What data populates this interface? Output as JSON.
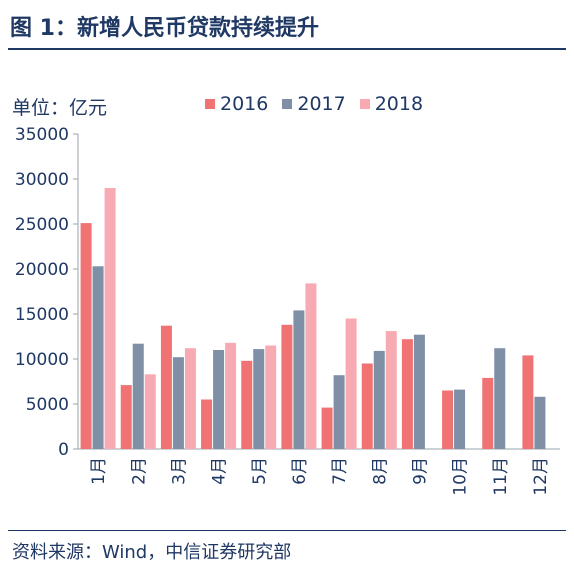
{
  "figure": {
    "title": "图 1：新增人民币贷款持续提升",
    "source": "资料来源：Wind，中信证券研究部"
  },
  "colors": {
    "2016": "#f07273",
    "2017": "#7e8fa6",
    "2018": "#f7aab2",
    "text": "#1f3864",
    "axis": "#9aa3ad"
  },
  "chart_data": {
    "type": "bar",
    "unit_label": "单位：亿元",
    "categories": [
      "1月",
      "2月",
      "3月",
      "4月",
      "5月",
      "6月",
      "7月",
      "8月",
      "9月",
      "10月",
      "11月",
      "12月"
    ],
    "series": [
      {
        "name": "2016",
        "values": [
          25100,
          7100,
          13700,
          5500,
          9800,
          13800,
          4600,
          9500,
          12200,
          6500,
          7900,
          10400
        ]
      },
      {
        "name": "2017",
        "values": [
          20300,
          11700,
          10200,
          11000,
          11100,
          15400,
          8200,
          10900,
          12700,
          6600,
          11200,
          5800
        ]
      },
      {
        "name": "2018",
        "values": [
          29000,
          8300,
          11200,
          11800,
          11500,
          18400,
          14500,
          13100,
          null,
          null,
          null,
          null
        ]
      }
    ],
    "ylim": [
      0,
      35000
    ],
    "yticks": [
      0,
      5000,
      10000,
      15000,
      20000,
      25000,
      30000,
      35000
    ],
    "legend_position": "top"
  }
}
